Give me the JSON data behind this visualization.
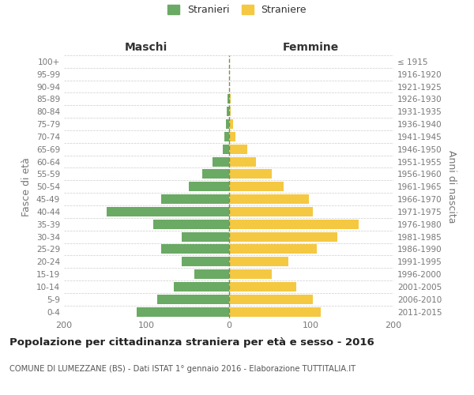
{
  "age_groups": [
    "100+",
    "95-99",
    "90-94",
    "85-89",
    "80-84",
    "75-79",
    "70-74",
    "65-69",
    "60-64",
    "55-59",
    "50-54",
    "45-49",
    "40-44",
    "35-39",
    "30-34",
    "25-29",
    "20-24",
    "15-19",
    "10-14",
    "5-9",
    "0-4"
  ],
  "birth_years": [
    "≤ 1915",
    "1916-1920",
    "1921-1925",
    "1926-1930",
    "1931-1935",
    "1936-1940",
    "1941-1945",
    "1946-1950",
    "1951-1955",
    "1956-1960",
    "1961-1965",
    "1966-1970",
    "1971-1975",
    "1976-1980",
    "1981-1985",
    "1986-1990",
    "1991-1995",
    "1996-2000",
    "2001-2005",
    "2006-2010",
    "2011-2015"
  ],
  "males": [
    0,
    0,
    0,
    1,
    2,
    3,
    5,
    7,
    20,
    32,
    48,
    82,
    148,
    92,
    57,
    82,
    57,
    42,
    67,
    87,
    112
  ],
  "females": [
    0,
    0,
    0,
    2,
    2,
    5,
    8,
    23,
    33,
    52,
    67,
    97,
    102,
    158,
    132,
    107,
    72,
    52,
    82,
    102,
    112
  ],
  "male_color": "#6aaa64",
  "female_color": "#f5c842",
  "title": "Popolazione per cittadinanza straniera per età e sesso - 2016",
  "subtitle": "COMUNE DI LUMEZZANE (BS) - Dati ISTAT 1° gennaio 2016 - Elaborazione TUTTITALIA.IT",
  "ylabel_left": "Fasce di età",
  "ylabel_right": "Anni di nascita",
  "xlabel_left": "Maschi",
  "xlabel_right": "Femmine",
  "legend_male": "Stranieri",
  "legend_female": "Straniere",
  "xlim": 200,
  "bg_color": "#ffffff",
  "grid_color": "#cccccc",
  "text_color": "#777777",
  "header_color": "#333333"
}
